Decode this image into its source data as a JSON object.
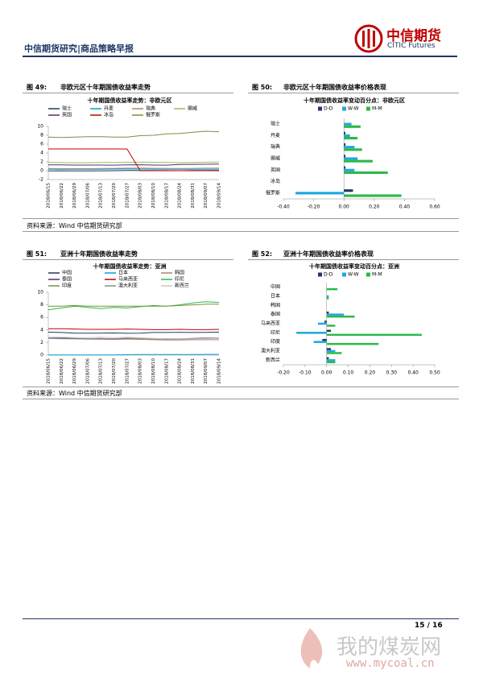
{
  "header": {
    "title": "中信期货研究|商品策略早报",
    "logo_cn": "中信期货",
    "logo_en": "CITIC Futures"
  },
  "figures": [
    {
      "label": "图 49:",
      "caption": "非欧元区十年期国债收益率走势"
    },
    {
      "label": "图 50:",
      "caption": "非欧元区十年期国债收益率价格表现"
    },
    {
      "label": "图 51:",
      "caption": "亚洲十年期国债收益率走势"
    },
    {
      "label": "图 52:",
      "caption": "亚洲十年期国债收益率价格表现"
    }
  ],
  "sources": [
    "资料来源：Wind 中信期货研究部",
    "资料来源：Wind 中信期货研究部"
  ],
  "chart_data": [
    {
      "type": "line",
      "title": "十年期国债收益率走势：非欧元区",
      "categories": [
        "2018/06/15",
        "2018/06/22",
        "2018/06/29",
        "2018/07/06",
        "2018/07/13",
        "2018/07/20",
        "2018/07/27",
        "2018/08/03",
        "2018/08/10",
        "2018/08/17",
        "2018/08/24",
        "2018/08/31",
        "2018/09/07",
        "2018/09/14"
      ],
      "ylim": [
        -2,
        10
      ],
      "yticks": [
        -2,
        0,
        2,
        4,
        6,
        8,
        10
      ],
      "series": [
        {
          "name": "瑞士",
          "color": "#1f3864",
          "values": [
            -0.05,
            -0.02,
            -0.05,
            -0.03,
            -0.02,
            0.0,
            0.05,
            0.06,
            0.05,
            0.02,
            0.0,
            0.03,
            0.05,
            0.08
          ]
        },
        {
          "name": "丹麦",
          "color": "#00a0e0",
          "values": [
            0.35,
            0.33,
            0.32,
            0.3,
            0.33,
            0.36,
            0.38,
            0.37,
            0.35,
            0.33,
            0.3,
            0.3,
            0.32,
            0.35
          ]
        },
        {
          "name": "瑞典",
          "color": "#a5876a",
          "values": [
            0.5,
            0.48,
            0.45,
            0.45,
            0.5,
            0.52,
            0.57,
            0.58,
            0.55,
            0.52,
            0.5,
            0.52,
            0.56,
            0.6
          ]
        },
        {
          "name": "挪威",
          "color": "#9bbb59",
          "values": [
            1.85,
            1.83,
            1.8,
            1.8,
            1.85,
            1.88,
            1.9,
            1.92,
            1.9,
            1.85,
            1.82,
            1.85,
            1.9,
            1.95
          ]
        },
        {
          "name": "英国",
          "color": "#5b2c6f",
          "values": [
            1.33,
            1.3,
            1.28,
            1.27,
            1.28,
            1.25,
            1.32,
            1.35,
            1.28,
            1.25,
            1.42,
            1.43,
            1.45,
            1.5
          ]
        },
        {
          "name": "冰岛",
          "color": "#c00000",
          "values": [
            4.9,
            4.9,
            4.9,
            4.9,
            4.9,
            4.9,
            4.9,
            0,
            0,
            0,
            0,
            0,
            0,
            0
          ]
        },
        {
          "name": "俄罗斯",
          "color": "#77933c",
          "values": [
            7.6,
            7.5,
            7.6,
            7.7,
            7.7,
            7.6,
            7.6,
            7.9,
            8.0,
            8.3,
            8.4,
            8.7,
            8.9,
            8.8
          ]
        }
      ]
    },
    {
      "type": "hbar",
      "title": "十年期国债收益率变动百分点：非欧元区",
      "categories": [
        "瑞士",
        "丹麦",
        "瑞典",
        "挪威",
        "英国",
        "冰岛",
        "俄罗斯"
      ],
      "xlim": [
        -0.4,
        0.6
      ],
      "xticks": [
        {
          "value": -0.4,
          "label": "-0.40"
        },
        {
          "value": -0.2,
          "label": "-0.20"
        },
        {
          "value": 0,
          "label": "0.00"
        },
        {
          "value": 0.2,
          "label": "0.20"
        },
        {
          "value": 0.4,
          "label": "0.40"
        },
        {
          "value": 0.6,
          "label": "0.60"
        }
      ],
      "series": [
        {
          "name": "D-D",
          "color": "#1f3864",
          "values": [
            0.0,
            0.01,
            0.01,
            0.01,
            0.01,
            0,
            0.06
          ]
        },
        {
          "name": "W-W",
          "color": "#1fa7e0",
          "values": [
            0.05,
            0.04,
            0.07,
            0.09,
            0.07,
            0,
            -0.32
          ]
        },
        {
          "name": "M-M",
          "color": "#2eb84a",
          "values": [
            0.11,
            0.09,
            0.12,
            0.19,
            0.29,
            0,
            0.38
          ]
        }
      ]
    },
    {
      "type": "line",
      "title": "十年期国债收益率走势：亚洲",
      "categories": [
        "2018/06/15",
        "2018/06/22",
        "2018/06/29",
        "2018/07/06",
        "2018/07/13",
        "2018/07/20",
        "2018/07/27",
        "2018/08/03",
        "2018/08/10",
        "2018/08/17",
        "2018/08/24",
        "2018/08/31",
        "2018/09/07",
        "2018/09/14"
      ],
      "ylim": [
        0,
        10
      ],
      "yticks": [
        0,
        2,
        4,
        6,
        8,
        10
      ],
      "series": [
        {
          "name": "中国",
          "color": "#1f3864",
          "values": [
            3.65,
            3.6,
            3.5,
            3.5,
            3.5,
            3.52,
            3.48,
            3.5,
            3.6,
            3.6,
            3.62,
            3.6,
            3.62,
            3.65
          ]
        },
        {
          "name": "日本",
          "color": "#00a0e0",
          "values": [
            0.03,
            0.03,
            0.03,
            0.03,
            0.03,
            0.04,
            0.06,
            0.1,
            0.1,
            0.1,
            0.1,
            0.1,
            0.11,
            0.12
          ]
        },
        {
          "name": "韩国",
          "color": "#a5876a",
          "values": [
            2.7,
            2.65,
            2.6,
            2.55,
            2.55,
            2.5,
            2.55,
            2.5,
            2.45,
            2.4,
            2.4,
            2.45,
            2.45,
            2.45
          ]
        },
        {
          "name": "泰国",
          "color": "#5b2c6f",
          "values": [
            2.7,
            2.7,
            2.65,
            2.6,
            2.6,
            2.6,
            2.65,
            2.65,
            2.6,
            2.6,
            2.6,
            2.65,
            2.7,
            2.7
          ]
        },
        {
          "name": "马来西亚",
          "color": "#c00000",
          "values": [
            4.2,
            4.2,
            4.15,
            4.1,
            4.1,
            4.1,
            4.15,
            4.1,
            4.05,
            4.05,
            4.1,
            4.05,
            4.05,
            4.1
          ]
        },
        {
          "name": "印尼",
          "color": "#2eb84a",
          "values": [
            7.2,
            7.5,
            7.8,
            7.6,
            7.4,
            7.6,
            7.5,
            7.7,
            7.9,
            7.8,
            8.0,
            8.3,
            8.5,
            8.4
          ]
        },
        {
          "name": "印度",
          "color": "#77933c",
          "values": [
            7.8,
            7.8,
            7.9,
            7.8,
            7.8,
            7.8,
            7.8,
            7.8,
            7.8,
            7.8,
            7.9,
            8.0,
            8.1,
            8.1
          ]
        },
        {
          "name": "澳大利亚",
          "color": "#8c8c8c",
          "values": [
            2.65,
            2.6,
            2.6,
            2.6,
            2.65,
            2.6,
            2.7,
            2.65,
            2.55,
            2.5,
            2.55,
            2.6,
            2.65,
            2.65
          ]
        },
        {
          "name": "新西兰",
          "color": "#c8c8c8",
          "values": [
            2.85,
            2.85,
            2.8,
            2.8,
            2.85,
            2.8,
            2.85,
            2.75,
            2.65,
            2.6,
            2.6,
            2.6,
            2.6,
            2.65
          ]
        }
      ]
    },
    {
      "type": "hbar",
      "title": "十年期国债收益率变动百分点：亚洲",
      "categories": [
        "中国",
        "日本",
        "韩国",
        "泰国",
        "马来西亚",
        "印尼",
        "印度",
        "澳大利亚",
        "新西兰"
      ],
      "xlim": [
        -0.2,
        0.5
      ],
      "xticks": [
        {
          "value": -0.2,
          "label": "-0.20"
        },
        {
          "value": -0.1,
          "label": "-0.10"
        },
        {
          "value": 0,
          "label": "0.00"
        },
        {
          "value": 0.1,
          "label": "0.10"
        },
        {
          "value": 0.2,
          "label": "0.20"
        },
        {
          "value": 0.3,
          "label": "0.30"
        },
        {
          "value": 0.4,
          "label": "0.40"
        },
        {
          "value": 0.5,
          "label": "0.50"
        }
      ],
      "series": [
        {
          "name": "D-D",
          "color": "#1f3864",
          "values": [
            0,
            0,
            0,
            0.01,
            -0.01,
            0.02,
            -0.02,
            0.02,
            0.01
          ]
        },
        {
          "name": "W-W",
          "color": "#1fa7e0",
          "values": [
            0.0,
            0.01,
            0,
            0.08,
            -0.04,
            -0.14,
            -0.06,
            0.04,
            0.04
          ]
        },
        {
          "name": "M-M",
          "color": "#2eb84a",
          "values": [
            0.05,
            0.01,
            0,
            0.13,
            0.04,
            0.44,
            0.24,
            0.07,
            0.04
          ]
        }
      ]
    }
  ],
  "footer": {
    "page": "15 / 16"
  },
  "watermark": {
    "name": "我的煤炭网",
    "url": "www.mycoal.cn"
  }
}
